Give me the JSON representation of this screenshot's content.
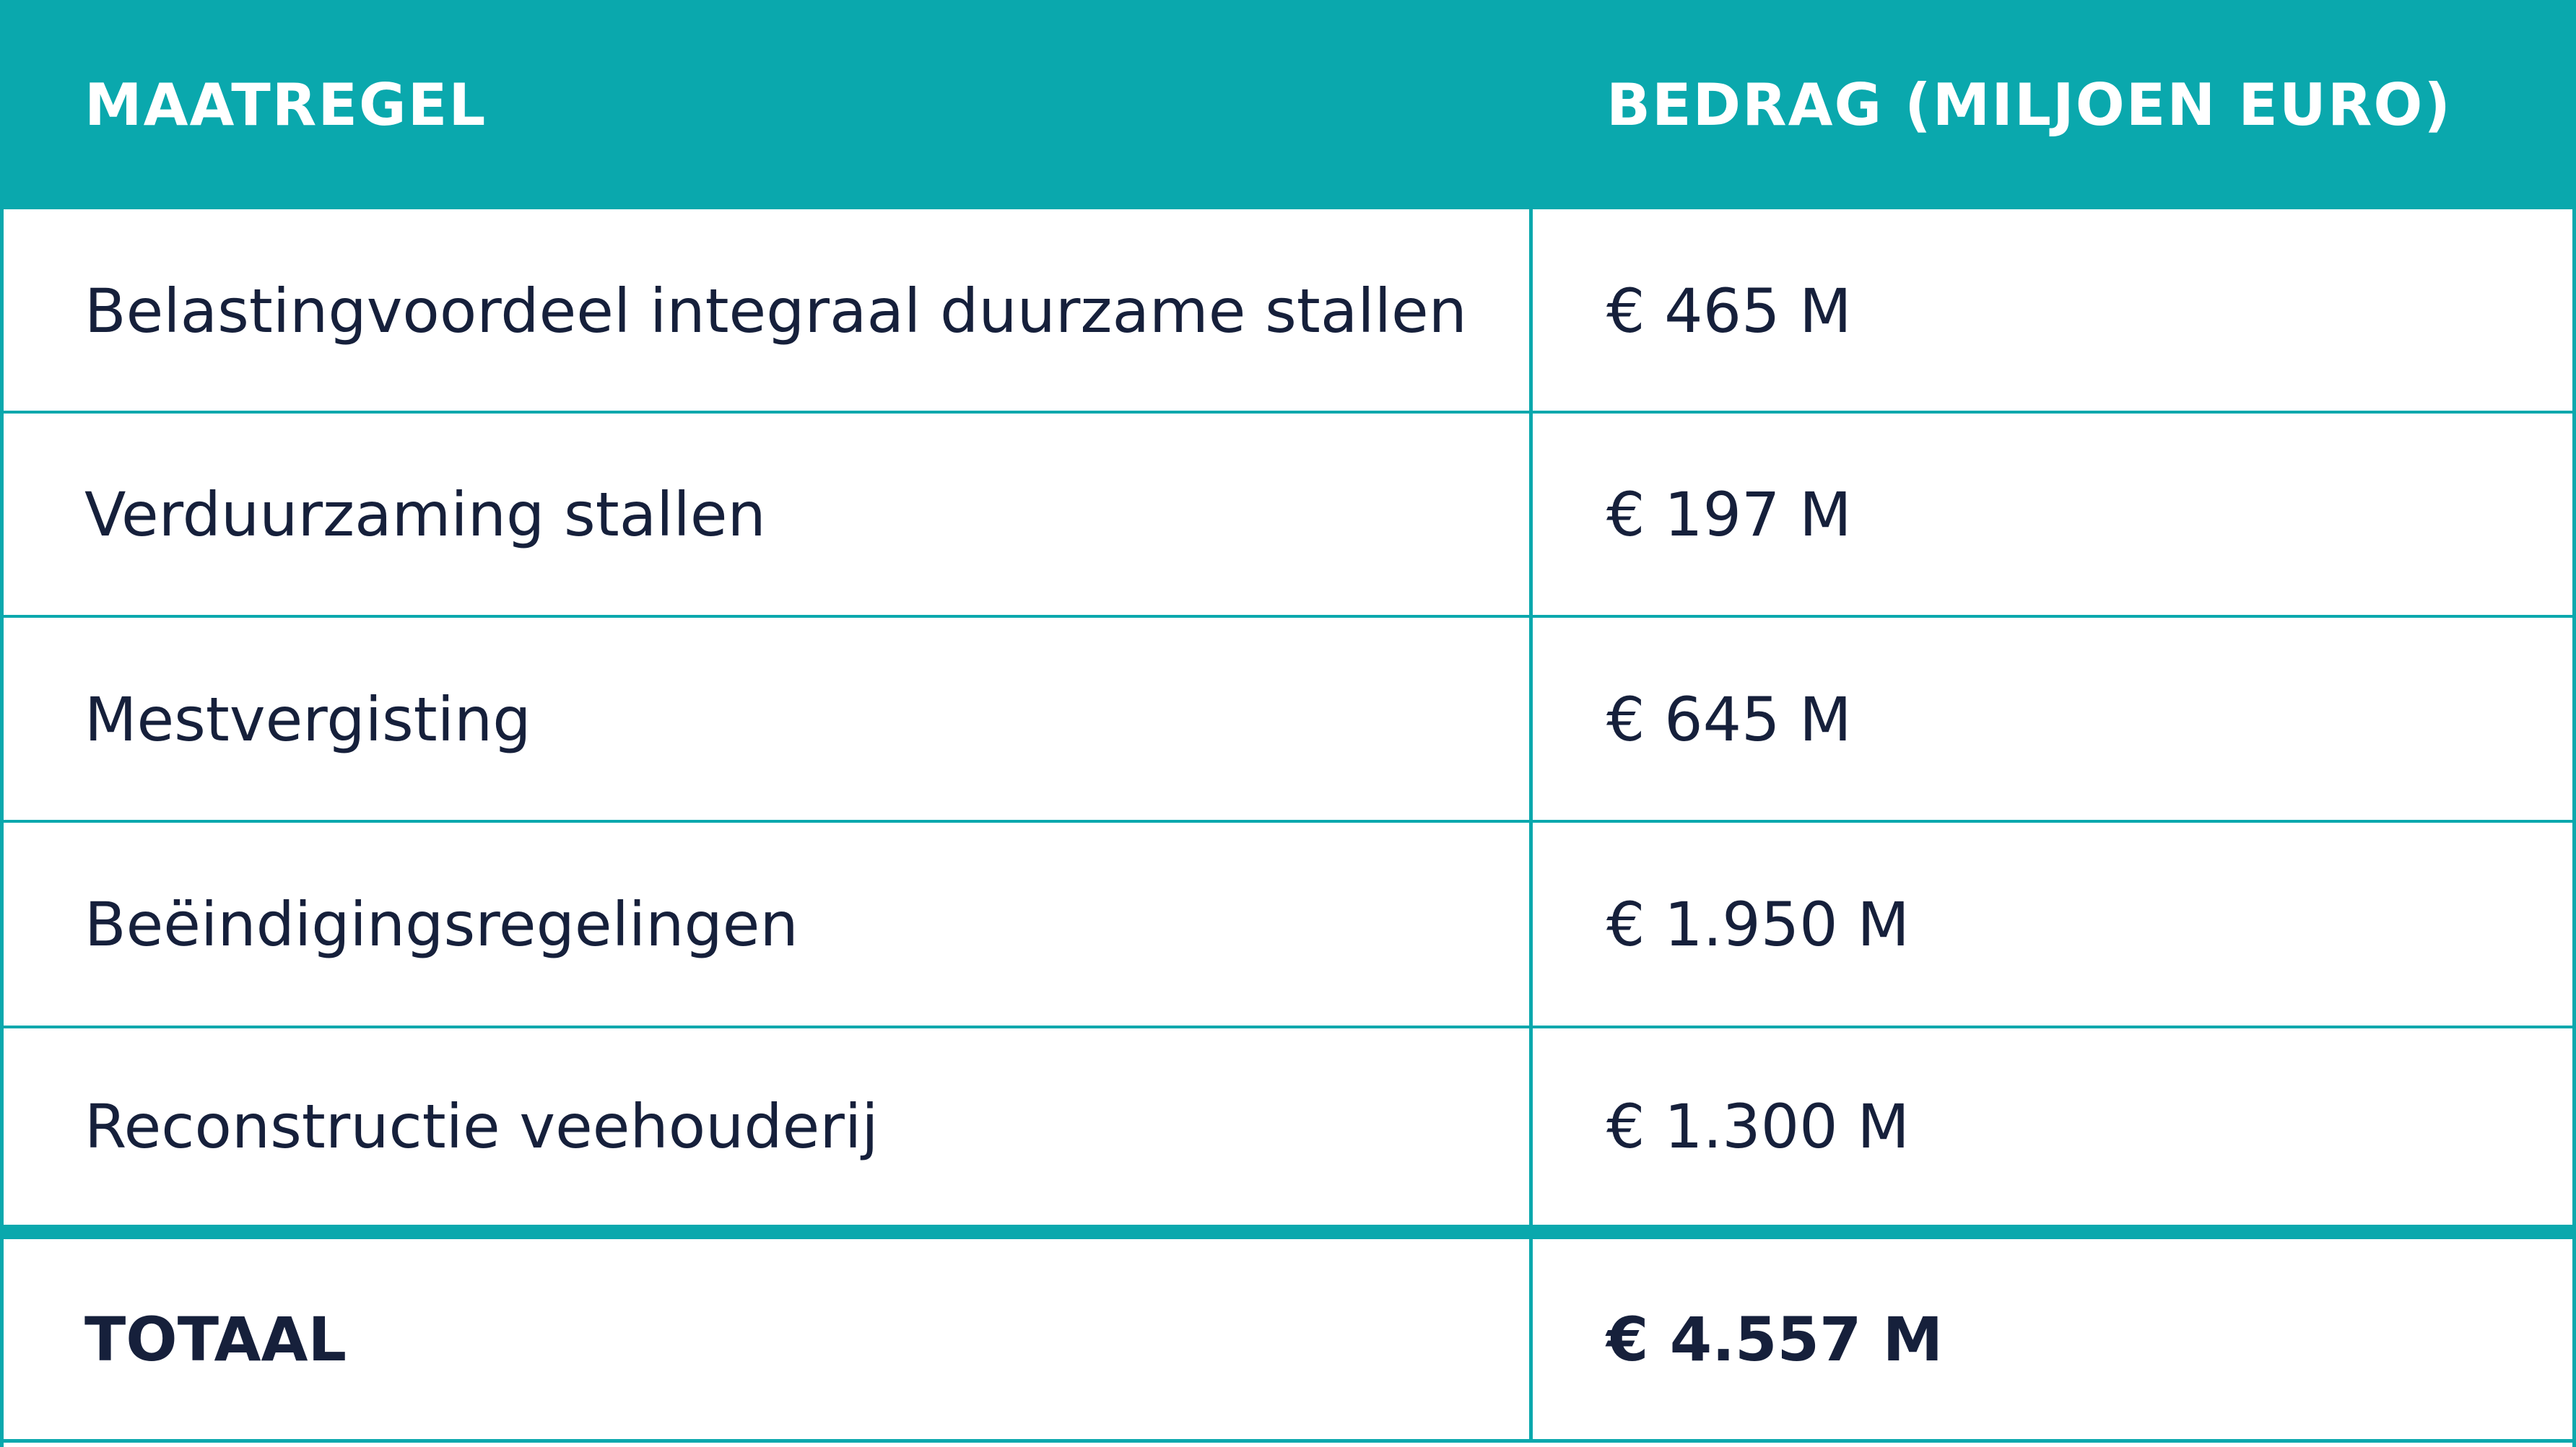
{
  "table": {
    "header": {
      "col_measure": "MAATREGEL",
      "col_amount": "BEDRAG (MILJOEN EURO)"
    },
    "rows": [
      {
        "measure": "Belastingvoordeel integraal duurzame stallen",
        "amount": "€ 465 M"
      },
      {
        "measure": "Verduurzaming stallen",
        "amount": "€ 197 M"
      },
      {
        "measure": "Mestvergisting",
        "amount": "€ 645 M"
      },
      {
        "measure": "Beëindigingsregelingen",
        "amount": "€ 1.950 M"
      },
      {
        "measure": "Reconstructie veehouderij",
        "amount": "€ 1.300 M"
      }
    ],
    "total": {
      "label": "TOTAAL",
      "amount": "€ 4.557 M"
    }
  },
  "colors": {
    "accent": "#0aa8ad",
    "text": "#16203b",
    "header_text": "#ffffff"
  }
}
